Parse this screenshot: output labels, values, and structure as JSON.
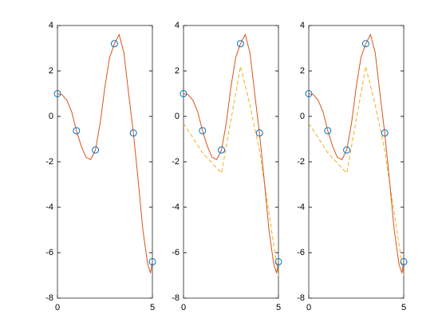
{
  "chart_data": [
    {
      "type": "line",
      "xlim": [
        0,
        5
      ],
      "ylim": [
        -8,
        4
      ],
      "xticks": [
        0,
        5
      ],
      "yticks": [
        -8,
        -6,
        -4,
        -2,
        0,
        2,
        4
      ],
      "series": [
        {
          "color": "#d95319",
          "x": [
            0,
            0.25,
            0.5,
            0.75,
            1,
            1.25,
            1.5,
            1.75,
            2,
            2.25,
            2.5,
            2.75,
            3,
            3.25,
            3.5,
            3.75,
            4,
            4.25,
            4.5,
            4.75,
            4.9,
            5
          ],
          "values": [
            1.0,
            0.95,
            0.7,
            0.2,
            -0.63,
            -1.3,
            -1.8,
            -1.9,
            -1.48,
            -0.3,
            1.3,
            2.6,
            3.2,
            3.6,
            2.8,
            1.0,
            -0.73,
            -2.8,
            -5.0,
            -6.5,
            -6.9,
            -6.4
          ]
        },
        {
          "color": "#0072bd",
          "marker": "circle",
          "x": [
            0,
            1,
            2,
            3,
            4,
            5
          ],
          "values": [
            1.0,
            -0.63,
            -1.48,
            3.2,
            -0.73,
            -6.4
          ]
        }
      ]
    },
    {
      "type": "line",
      "xlim": [
        0,
        5
      ],
      "ylim": [
        -8,
        4
      ],
      "xticks": [
        0,
        5
      ],
      "yticks": [
        -8,
        -6,
        -4,
        -2,
        0,
        2,
        4
      ],
      "series": [
        {
          "color": "#edb120",
          "dash": true,
          "x": [
            0,
            1,
            2,
            3,
            3.5,
            4,
            5
          ],
          "values": [
            -0.3,
            -1.6,
            -2.5,
            2.2,
            0.5,
            -1.5,
            -7.0
          ]
        },
        {
          "color": "#d95319",
          "x": [
            0,
            0.25,
            0.5,
            0.75,
            1,
            1.25,
            1.5,
            1.75,
            2,
            2.25,
            2.5,
            2.75,
            3,
            3.25,
            3.5,
            3.75,
            4,
            4.25,
            4.5,
            4.75,
            4.9,
            5
          ],
          "values": [
            1.0,
            0.95,
            0.7,
            0.2,
            -0.63,
            -1.3,
            -1.8,
            -1.9,
            -1.48,
            -0.3,
            1.3,
            2.6,
            3.2,
            3.6,
            2.8,
            1.0,
            -0.73,
            -2.8,
            -5.0,
            -6.5,
            -6.9,
            -6.4
          ]
        },
        {
          "color": "#0072bd",
          "marker": "circle",
          "x": [
            0,
            1,
            2,
            3,
            4,
            5
          ],
          "values": [
            1.0,
            -0.63,
            -1.48,
            3.2,
            -0.73,
            -6.4
          ]
        }
      ]
    },
    {
      "type": "line",
      "xlim": [
        0,
        5
      ],
      "ylim": [
        -8,
        4
      ],
      "xticks": [
        0,
        5
      ],
      "yticks": [
        -8,
        -6,
        -4,
        -2,
        0,
        2,
        4
      ],
      "series": [
        {
          "color": "#edb120",
          "dash": true,
          "x": [
            0,
            1,
            2,
            3,
            3.5,
            4,
            5
          ],
          "values": [
            -0.3,
            -1.6,
            -2.5,
            2.2,
            0.5,
            -1.5,
            -7.0
          ]
        },
        {
          "color": "#d95319",
          "x": [
            0,
            0.25,
            0.5,
            0.75,
            1,
            1.25,
            1.5,
            1.75,
            2,
            2.25,
            2.5,
            2.75,
            3,
            3.25,
            3.5,
            3.75,
            4,
            4.25,
            4.5,
            4.75,
            4.9,
            5
          ],
          "values": [
            1.0,
            0.95,
            0.7,
            0.2,
            -0.63,
            -1.3,
            -1.8,
            -1.9,
            -1.48,
            -0.3,
            1.3,
            2.6,
            3.2,
            3.6,
            2.8,
            1.0,
            -0.73,
            -2.8,
            -5.0,
            -6.5,
            -6.9,
            -6.4
          ]
        },
        {
          "color": "#0072bd",
          "marker": "circle",
          "x": [
            0,
            1,
            2,
            3,
            4,
            5
          ],
          "values": [
            1.0,
            -0.63,
            -1.48,
            3.2,
            -0.73,
            -6.4
          ]
        }
      ]
    }
  ]
}
